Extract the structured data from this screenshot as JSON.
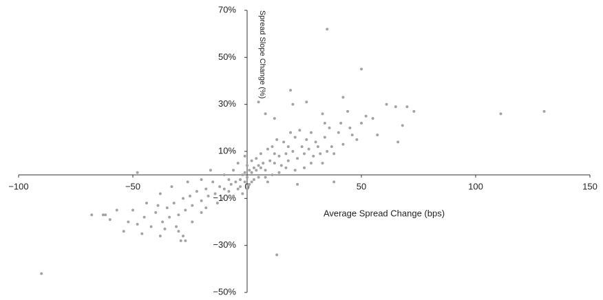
{
  "chart_data": {
    "type": "scatter",
    "x_label": "Average Spread Change (bps)",
    "y_label": "Spread Slope Change (%)",
    "color": "#a3a3a3",
    "xlim": [
      -100,
      150
    ],
    "ylim": [
      -50,
      70
    ],
    "xticks": [
      {
        "value": -100,
        "label": "−100"
      },
      {
        "value": -50,
        "label": "−50"
      },
      0,
      50,
      100,
      150
    ],
    "yticks": [
      {
        "value": 70,
        "label": "70%"
      },
      {
        "value": 50,
        "label": "50%"
      },
      {
        "value": 30,
        "label": "30%"
      },
      {
        "value": 10,
        "label": "10%"
      },
      {
        "value": -10,
        "label": "−10%"
      },
      {
        "value": -30,
        "label": "−30%"
      },
      {
        "value": -50,
        "label": "−50%"
      }
    ],
    "x": [
      35,
      50,
      -90,
      13,
      111,
      130,
      73,
      66,
      57,
      68,
      65,
      61,
      70,
      -68,
      -63,
      -54,
      -60,
      -57,
      -27,
      -28,
      -30,
      19,
      20,
      42,
      26,
      -29,
      -62,
      -5,
      -3,
      -2,
      -1,
      0,
      1,
      2,
      3,
      4,
      5,
      6,
      7,
      8,
      10,
      12,
      14,
      15,
      17,
      18,
      20,
      22,
      24,
      25,
      27,
      28,
      30,
      32,
      34,
      35,
      37,
      40,
      42,
      45,
      48,
      50,
      52,
      55,
      -7,
      -8,
      -10,
      -12,
      -14,
      -15,
      -17,
      -18,
      -20,
      -22,
      -24,
      -25,
      -27,
      -28,
      -30,
      -32,
      -34,
      -35,
      -37,
      -40,
      -42,
      -44,
      -45,
      -48,
      -50,
      -52,
      -38,
      -33,
      -26,
      -20,
      -16,
      -10,
      -6,
      -4,
      0,
      2,
      4,
      6,
      9,
      11,
      13,
      16,
      19,
      21,
      23,
      8,
      11,
      14,
      17,
      21,
      25,
      29,
      33,
      38,
      0,
      -2,
      1,
      3,
      5,
      -1,
      -3,
      2,
      -8,
      -11,
      -13,
      -6,
      -46,
      -36,
      -31,
      -39,
      12,
      18,
      26,
      31,
      36,
      41,
      46,
      44,
      34,
      38,
      22,
      9,
      -48,
      -38,
      -24,
      -20,
      -18,
      28,
      33,
      8,
      5,
      12,
      -1,
      -4
    ],
    "values": [
      62,
      45,
      -42,
      -34,
      26,
      27,
      27,
      14,
      17,
      21,
      29,
      30,
      29,
      -17,
      -17,
      -24,
      -19,
      -15,
      -28,
      -26,
      -24,
      36,
      30,
      33,
      31,
      -28,
      -17,
      -3,
      -2,
      0,
      1,
      -1,
      2,
      1,
      3,
      2,
      4,
      3,
      5,
      2,
      6,
      5,
      8,
      4,
      9,
      6,
      10,
      7,
      12,
      9,
      11,
      5,
      14,
      9,
      16,
      10,
      12,
      18,
      13,
      20,
      15,
      22,
      25,
      24,
      -4,
      -2,
      -6,
      -5,
      -8,
      -3,
      -9,
      -6,
      -11,
      -7,
      -13,
      -9,
      -15,
      -10,
      -17,
      -12,
      -18,
      -14,
      -20,
      -16,
      -22,
      -12,
      -18,
      -21,
      -15,
      -20,
      -8,
      -5,
      -3,
      -2,
      2,
      0,
      2,
      -6,
      4,
      6,
      7,
      9,
      11,
      12,
      15,
      14,
      18,
      16,
      19,
      -1,
      0,
      1,
      3,
      2,
      3,
      8,
      5,
      9,
      -6,
      -8,
      -4,
      -2,
      -1,
      -3,
      -5,
      -3,
      -7,
      -10,
      -12,
      -9,
      -25,
      -23,
      -22,
      -13,
      9,
      12,
      15,
      12,
      20,
      22,
      17,
      27,
      22,
      -3,
      -4,
      -3,
      1,
      -26,
      -20,
      -16,
      -14,
      18,
      26,
      26,
      31,
      24,
      8,
      5
    ]
  }
}
